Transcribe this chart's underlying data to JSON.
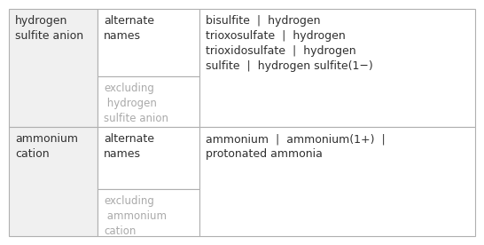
{
  "background_color": "#ffffff",
  "border_color": "#b0b0b0",
  "col1_bg": "#f0f0f0",
  "col2_bg": "#ffffff",
  "col3_bg": "#ffffff",
  "normal_text_color": "#303030",
  "light_text_color": "#aaaaaa",
  "font_size_main": 9.0,
  "font_size_excl": 8.5,
  "row1": {
    "col1_text": "hydrogen\nsulfite anion",
    "col2_top_text": "alternate\nnames",
    "col2_bot_text": "excluding\n hydrogen\nsulfite anion",
    "col3_text": "bisulfite  |  hydrogen\ntrioxosulfate  |  hydrogen\ntrioxidosulfate  |  hydrogen\nsulfite  |  hydrogen sulfite(1−)"
  },
  "row2": {
    "col1_text": "ammonium\ncation",
    "col2_top_text": "alternate\nnames",
    "col2_bot_text": "excluding\n ammonium\ncation",
    "col3_text": "ammonium  |  ammonium(1+)  |\nprotonated ammonia"
  }
}
